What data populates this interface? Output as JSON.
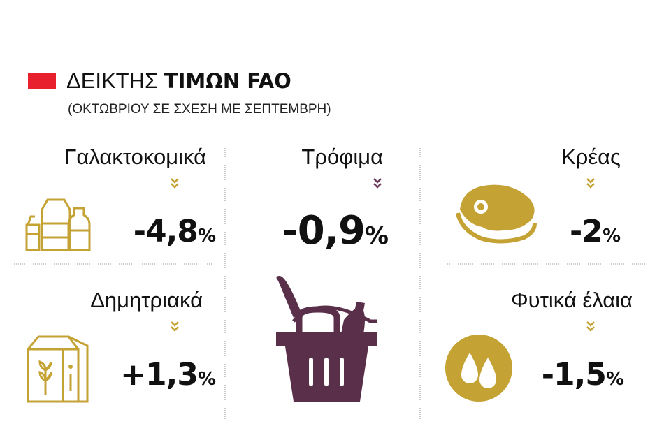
{
  "header": {
    "title_light": "ΔΕΙΚΤΗΣ",
    "title_bold": "ΤΙΜΩΝ FAO",
    "subtitle": "(ΟΚΤΩΒΡΙΟΥ ΣΕ ΣΧΕΣΗ ΜΕ ΣΕΠΤΕΜΒΡΗ)"
  },
  "items": [
    {
      "label": "Γαλακτοκομικά",
      "value": "-4,8",
      "unit": "%"
    },
    {
      "label": "Τρόφιμα",
      "value": "-0,9",
      "unit": "%"
    },
    {
      "label": "Κρέας",
      "value": "-2",
      "unit": "%"
    },
    {
      "label": "Δημητριακά",
      "value": "+1,3",
      "unit": "%"
    },
    {
      "label": "Φυτικά έλαια",
      "value": "-1,5",
      "unit": "%"
    }
  ]
}
